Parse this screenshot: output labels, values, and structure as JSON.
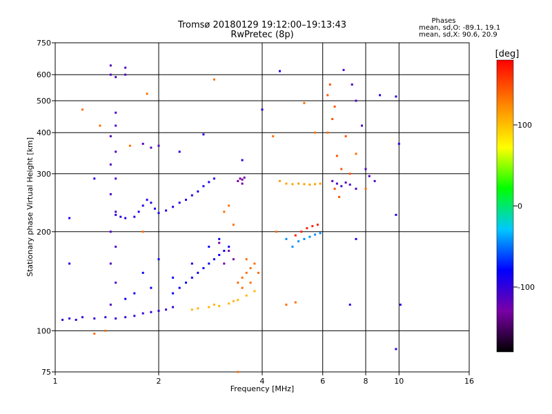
{
  "chart_data": {
    "type": "scatter",
    "title": "Tromsø 20180129 19:12:00–19:13:43",
    "subtitle": "RwPretec (8p)",
    "xlabel": "Frequency [MHz]",
    "ylabel": "Stationary phase Virtual Height [km]",
    "x_scale": "log",
    "y_scale": "log",
    "xlim": [
      1,
      16
    ],
    "ylim": [
      75,
      750
    ],
    "x_ticks": [
      1,
      2,
      4,
      6,
      8,
      10,
      16
    ],
    "y_ticks": [
      75,
      100,
      200,
      300,
      400,
      500,
      600,
      750
    ],
    "grid": true,
    "legend_placement": "top-right",
    "info_header": "Phases",
    "info_lines": [
      "mean, sd,O: -89.1, 19.1",
      "mean, sd,X:  90.6, 20.9"
    ],
    "colorbar": {
      "label": "[deg]",
      "range": [
        -180,
        180
      ],
      "ticks": [
        100,
        0,
        -100
      ],
      "colors": [
        "#000000",
        "#7a00a6",
        "#0000ff",
        "#00c8ff",
        "#00ff00",
        "#ffff00",
        "#ff8c00",
        "#ff0000"
      ]
    },
    "clusters": [
      {
        "phase": -100,
        "points": [
          [
            1.05,
            108
          ],
          [
            1.1,
            109
          ],
          [
            1.15,
            108
          ],
          [
            1.2,
            110
          ],
          [
            1.3,
            109
          ],
          [
            1.4,
            110
          ],
          [
            1.5,
            109
          ],
          [
            1.6,
            110
          ],
          [
            1.7,
            111
          ],
          [
            1.8,
            113
          ],
          [
            1.9,
            114
          ],
          [
            2.0,
            115
          ],
          [
            2.1,
            116
          ],
          [
            2.2,
            118
          ]
        ]
      },
      {
        "phase": -110,
        "points": [
          [
            1.45,
            640
          ],
          [
            1.45,
            600
          ],
          [
            1.5,
            590
          ],
          [
            1.5,
            460
          ],
          [
            1.5,
            420
          ],
          [
            1.45,
            390
          ],
          [
            1.5,
            350
          ],
          [
            1.45,
            320
          ],
          [
            1.5,
            290
          ],
          [
            1.45,
            260
          ],
          [
            1.5,
            230
          ],
          [
            1.45,
            200
          ],
          [
            1.5,
            180
          ],
          [
            1.45,
            160
          ],
          [
            1.5,
            140
          ],
          [
            1.45,
            120
          ],
          [
            1.6,
            630
          ],
          [
            1.6,
            600
          ],
          [
            1.8,
            370
          ],
          [
            1.9,
            360
          ],
          [
            2.0,
            365
          ]
        ]
      },
      {
        "phase": -90,
        "points": [
          [
            1.5,
            225
          ],
          [
            1.55,
            222
          ],
          [
            1.6,
            220
          ],
          [
            1.7,
            222
          ],
          [
            1.75,
            230
          ],
          [
            1.8,
            240
          ],
          [
            1.85,
            250
          ],
          [
            1.9,
            245
          ],
          [
            1.95,
            235
          ],
          [
            2.0,
            228
          ],
          [
            2.1,
            232
          ],
          [
            2.2,
            238
          ],
          [
            2.3,
            245
          ],
          [
            2.4,
            250
          ],
          [
            2.5,
            258
          ],
          [
            2.6,
            265
          ],
          [
            2.7,
            275
          ],
          [
            2.8,
            283
          ],
          [
            2.9,
            290
          ]
        ]
      },
      {
        "phase": -80,
        "points": [
          [
            2.2,
            130
          ],
          [
            2.3,
            135
          ],
          [
            2.4,
            140
          ],
          [
            2.5,
            145
          ],
          [
            2.6,
            150
          ],
          [
            2.7,
            155
          ],
          [
            2.8,
            160
          ],
          [
            2.9,
            165
          ],
          [
            3.0,
            170
          ],
          [
            3.1,
            175
          ],
          [
            3.2,
            180
          ],
          [
            2.2,
            145
          ],
          [
            2.5,
            160
          ],
          [
            2.8,
            180
          ],
          [
            3.0,
            190
          ],
          [
            1.9,
            135
          ],
          [
            1.7,
            130
          ],
          [
            1.8,
            150
          ],
          [
            2.0,
            165
          ],
          [
            1.6,
            125
          ]
        ]
      },
      {
        "phase": -130,
        "points": [
          [
            3.4,
            285
          ],
          [
            3.45,
            290
          ],
          [
            3.5,
            288
          ],
          [
            3.55,
            292
          ],
          [
            3.5,
            280
          ],
          [
            3.0,
            185
          ],
          [
            3.2,
            175
          ],
          [
            3.1,
            160
          ],
          [
            3.3,
            165
          ]
        ]
      },
      {
        "phase": 110,
        "points": [
          [
            2.6,
            117
          ],
          [
            2.8,
            118
          ],
          [
            3.0,
            119
          ],
          [
            3.2,
            121
          ],
          [
            3.4,
            124
          ],
          [
            3.6,
            128
          ],
          [
            3.8,
            132
          ],
          [
            2.5,
            116
          ],
          [
            2.9,
            120
          ],
          [
            3.3,
            123
          ]
        ]
      },
      {
        "phase": 120,
        "points": [
          [
            4.5,
            285
          ],
          [
            4.7,
            280
          ],
          [
            4.9,
            279
          ],
          [
            5.1,
            280
          ],
          [
            5.3,
            279
          ],
          [
            5.5,
            278
          ],
          [
            5.7,
            279
          ],
          [
            5.9,
            280
          ]
        ]
      },
      {
        "phase": 140,
        "points": [
          [
            3.4,
            140
          ],
          [
            3.5,
            145
          ],
          [
            3.6,
            150
          ],
          [
            3.7,
            155
          ],
          [
            3.8,
            160
          ],
          [
            3.9,
            150
          ],
          [
            3.5,
            135
          ],
          [
            3.7,
            140
          ],
          [
            3.6,
            165
          ]
        ]
      },
      {
        "phase": 170,
        "points": [
          [
            5.2,
            200
          ],
          [
            5.4,
            205
          ],
          [
            5.6,
            208
          ],
          [
            5.8,
            210
          ],
          [
            5.0,
            195
          ]
        ]
      },
      {
        "phase": -40,
        "points": [
          [
            5.3,
            190
          ],
          [
            5.5,
            193
          ],
          [
            5.7,
            196
          ],
          [
            5.9,
            198
          ],
          [
            5.1,
            187
          ],
          [
            4.9,
            180
          ],
          [
            4.7,
            190
          ]
        ]
      },
      {
        "phase": -110,
        "points": [
          [
            6.4,
            285
          ],
          [
            6.6,
            280
          ],
          [
            6.8,
            275
          ],
          [
            7.0,
            282
          ],
          [
            7.2,
            278
          ],
          [
            7.5,
            270
          ],
          [
            8.0,
            310
          ],
          [
            8.2,
            295
          ],
          [
            8.5,
            285
          ],
          [
            6.9,
            620
          ],
          [
            7.3,
            560
          ],
          [
            7.5,
            500
          ],
          [
            7.8,
            420
          ]
        ]
      },
      {
        "phase": 150,
        "points": [
          [
            6.3,
            560
          ],
          [
            6.2,
            520
          ],
          [
            6.5,
            480
          ],
          [
            6.4,
            440
          ],
          [
            7.0,
            390
          ],
          [
            6.6,
            340
          ],
          [
            6.8,
            310
          ],
          [
            7.2,
            300
          ],
          [
            6.5,
            270
          ],
          [
            6.7,
            255
          ]
        ]
      },
      {
        "phase": -90,
        "points": [
          [
            8.8,
            520
          ],
          [
            9.8,
            515
          ],
          [
            10.0,
            370
          ],
          [
            9.8,
            225
          ],
          [
            10.1,
            120
          ],
          [
            1.1,
            220
          ],
          [
            1.1,
            160
          ],
          [
            1.3,
            290
          ],
          [
            2.3,
            350
          ],
          [
            2.7,
            395
          ],
          [
            3.5,
            330
          ],
          [
            4.5,
            615
          ],
          [
            4.0,
            470
          ],
          [
            7.2,
            120
          ],
          [
            7.5,
            190
          ],
          [
            9.8,
            88
          ]
        ]
      },
      {
        "phase": 140,
        "points": [
          [
            1.2,
            470
          ],
          [
            1.35,
            420
          ],
          [
            1.65,
            365
          ],
          [
            1.85,
            525
          ],
          [
            2.9,
            580
          ],
          [
            1.4,
            100
          ],
          [
            1.3,
            98
          ],
          [
            1.8,
            200
          ],
          [
            3.4,
            75
          ],
          [
            4.7,
            120
          ],
          [
            5.0,
            122
          ],
          [
            5.3,
            492
          ],
          [
            4.3,
            390
          ],
          [
            4.4,
            200
          ],
          [
            5.7,
            400
          ],
          [
            6.2,
            400
          ],
          [
            7.5,
            345
          ],
          [
            8.0,
            270
          ],
          [
            3.2,
            240
          ],
          [
            3.3,
            210
          ],
          [
            3.1,
            230
          ]
        ]
      }
    ]
  }
}
